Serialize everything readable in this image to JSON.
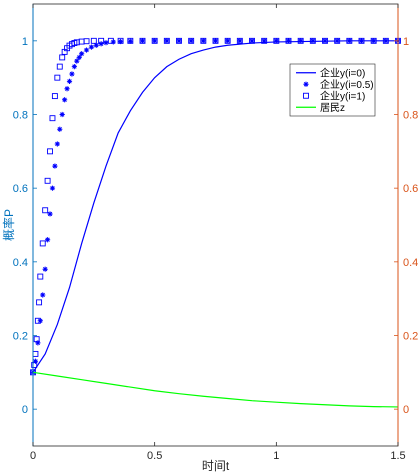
{
  "chart_data": {
    "type": "line",
    "xlabel": "时间t",
    "ylabel": "概率P",
    "xlim": [
      0,
      1.5
    ],
    "ylim": [
      -0.1,
      1.1
    ],
    "yrlim": [
      -0.1,
      1.1
    ],
    "xticks": [
      0,
      0.5,
      1,
      1.5
    ],
    "xtick_labels": [
      "0",
      "0.5",
      "1",
      "1.5"
    ],
    "yticks": [
      0,
      0.2,
      0.4,
      0.6,
      0.8,
      1
    ],
    "ytick_labels": [
      "0",
      "0.2",
      "0.4",
      "0.6",
      "0.8",
      "1"
    ],
    "yrticks": [
      0,
      0.2,
      0.4,
      0.6,
      0.8,
      1
    ],
    "yrtick_labels": [
      "0",
      "0.2",
      "0.4",
      "0.6",
      "0.8",
      "1"
    ],
    "grid": false,
    "legend_position": "top-right",
    "left_axis_color": "#0072BD",
    "right_axis_color": "#D95319",
    "series": [
      {
        "name": "企业y(i=0)",
        "style": "line",
        "color": "#0000FF",
        "x": [
          0,
          0.05,
          0.1,
          0.15,
          0.2,
          0.25,
          0.3,
          0.35,
          0.4,
          0.45,
          0.5,
          0.55,
          0.6,
          0.65,
          0.7,
          0.75,
          0.8,
          0.9,
          1.0,
          1.1,
          1.2,
          1.3,
          1.4,
          1.5
        ],
        "y": [
          0.1,
          0.15,
          0.23,
          0.33,
          0.45,
          0.56,
          0.66,
          0.75,
          0.81,
          0.86,
          0.9,
          0.93,
          0.95,
          0.965,
          0.975,
          0.983,
          0.988,
          0.994,
          0.997,
          0.998,
          0.999,
          1.0,
          1.0,
          1.0
        ]
      },
      {
        "name": "企业y(i=0.5)",
        "style": "star",
        "color": "#0000FF",
        "x": [
          0,
          0.01,
          0.02,
          0.03,
          0.04,
          0.05,
          0.06,
          0.07,
          0.08,
          0.09,
          0.1,
          0.11,
          0.12,
          0.13,
          0.14,
          0.15,
          0.16,
          0.17,
          0.18,
          0.19,
          0.2,
          0.22,
          0.24,
          0.26,
          0.28,
          0.3,
          0.33,
          0.36,
          0.4,
          0.45,
          0.5,
          0.55,
          0.6,
          0.65,
          0.7,
          0.75,
          0.8,
          0.85,
          0.9,
          0.95,
          1.0,
          1.05,
          1.1,
          1.15,
          1.2,
          1.25,
          1.3,
          1.35,
          1.4,
          1.45,
          1.5
        ],
        "y": [
          0.1,
          0.13,
          0.18,
          0.24,
          0.31,
          0.38,
          0.46,
          0.53,
          0.6,
          0.66,
          0.72,
          0.76,
          0.8,
          0.84,
          0.87,
          0.89,
          0.91,
          0.93,
          0.945,
          0.955,
          0.965,
          0.975,
          0.983,
          0.988,
          0.992,
          0.995,
          0.997,
          0.998,
          0.999,
          1.0,
          1.0,
          1.0,
          1.0,
          1.0,
          1.0,
          1.0,
          1.0,
          1.0,
          1.0,
          1.0,
          1.0,
          1.0,
          1.0,
          1.0,
          1.0,
          1.0,
          1.0,
          1.0,
          1.0,
          1.0,
          1.0
        ]
      },
      {
        "name": "企业y(i=1)",
        "style": "square",
        "color": "#0000FF",
        "x": [
          0,
          0.005,
          0.01,
          0.015,
          0.02,
          0.025,
          0.03,
          0.04,
          0.05,
          0.06,
          0.07,
          0.08,
          0.09,
          0.1,
          0.11,
          0.12,
          0.13,
          0.14,
          0.15,
          0.16,
          0.17,
          0.18,
          0.2,
          0.22,
          0.25,
          0.28,
          0.32,
          0.36,
          0.4,
          0.45,
          0.5,
          0.55,
          0.6,
          0.65,
          0.7,
          0.75,
          0.8,
          0.85,
          0.9,
          0.95,
          1.0,
          1.05,
          1.1,
          1.15,
          1.2,
          1.25,
          1.3,
          1.35,
          1.4,
          1.45,
          1.5
        ],
        "y": [
          0.1,
          0.12,
          0.15,
          0.19,
          0.24,
          0.29,
          0.36,
          0.45,
          0.54,
          0.62,
          0.7,
          0.79,
          0.85,
          0.9,
          0.93,
          0.955,
          0.97,
          0.98,
          0.987,
          0.991,
          0.994,
          0.996,
          0.998,
          0.999,
          1.0,
          1.0,
          1.0,
          1.0,
          1.0,
          1.0,
          1.0,
          1.0,
          1.0,
          1.0,
          1.0,
          1.0,
          1.0,
          1.0,
          1.0,
          1.0,
          1.0,
          1.0,
          1.0,
          1.0,
          1.0,
          1.0,
          1.0,
          1.0,
          1.0,
          1.0,
          1.0
        ]
      },
      {
        "name": "居民z",
        "style": "line",
        "color": "#00FF00",
        "x": [
          0,
          0.1,
          0.2,
          0.3,
          0.4,
          0.5,
          0.6,
          0.7,
          0.8,
          0.9,
          1.0,
          1.1,
          1.2,
          1.3,
          1.4,
          1.5
        ],
        "y": [
          0.1,
          0.09,
          0.08,
          0.07,
          0.06,
          0.05,
          0.042,
          0.035,
          0.029,
          0.023,
          0.019,
          0.015,
          0.012,
          0.009,
          0.007,
          0.006
        ]
      }
    ]
  }
}
